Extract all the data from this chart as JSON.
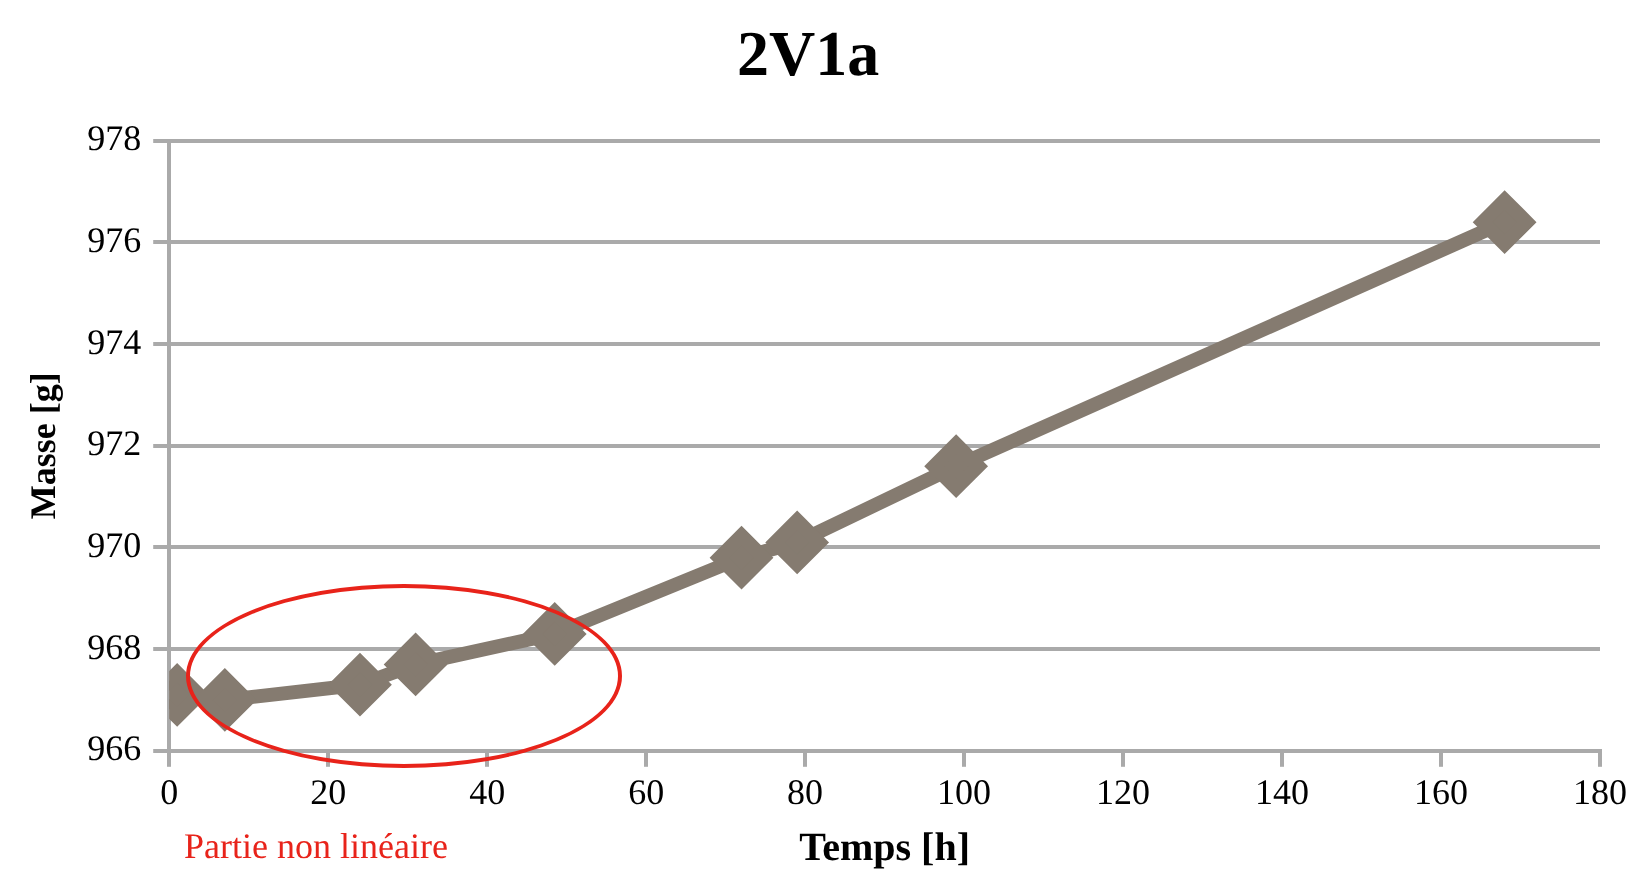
{
  "chart_data": {
    "type": "line",
    "title": "2V1a",
    "xlabel": "Temps [h]",
    "ylabel": "Masse [g]",
    "x": [
      1,
      7,
      24,
      31,
      48.5,
      72,
      79,
      99,
      168
    ],
    "series": [
      {
        "color": "#857b70",
        "values": [
          967.1,
          967.0,
          967.3,
          967.7,
          968.3,
          969.8,
          970.1,
          971.6,
          976.4
        ]
      }
    ],
    "xlim": [
      0,
      180
    ],
    "xticks": [
      0,
      20,
      40,
      60,
      80,
      100,
      120,
      140,
      160,
      180
    ],
    "ylim": [
      966,
      978
    ],
    "yticks": [
      966,
      968,
      970,
      972,
      974,
      976,
      978
    ],
    "grid": "y",
    "marker": "diamond",
    "line_style": "solid",
    "legend": false,
    "annotations": [
      "Partie non linéaire"
    ]
  }
}
